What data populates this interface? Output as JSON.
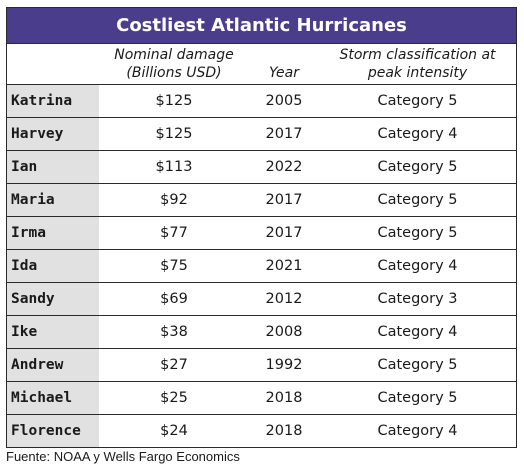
{
  "chart_data": {
    "type": "table",
    "title": "Costliest Atlantic Hurricanes",
    "columns": [
      {
        "key": "name",
        "label_lines": [
          "",
          ""
        ]
      },
      {
        "key": "damage",
        "label_lines": [
          "Nominal damage",
          "(Billions USD)"
        ]
      },
      {
        "key": "year",
        "label_lines": [
          "",
          "Year"
        ]
      },
      {
        "key": "classification",
        "label_lines": [
          "Storm classification at",
          "peak intensity"
        ]
      }
    ],
    "rows": [
      {
        "name": "Katrina",
        "damage": "$125",
        "year": "2005",
        "classification": "Category 5"
      },
      {
        "name": "Harvey",
        "damage": "$125",
        "year": "2017",
        "classification": "Category 4"
      },
      {
        "name": "Ian",
        "damage": "$113",
        "year": "2022",
        "classification": "Category 5"
      },
      {
        "name": "Maria",
        "damage": "$92",
        "year": "2017",
        "classification": "Category 5"
      },
      {
        "name": "Irma",
        "damage": "$77",
        "year": "2017",
        "classification": "Category 5"
      },
      {
        "name": "Ida",
        "damage": "$75",
        "year": "2021",
        "classification": "Category 4"
      },
      {
        "name": "Sandy",
        "damage": "$69",
        "year": "2012",
        "classification": "Category 3"
      },
      {
        "name": "Ike",
        "damage": "$38",
        "year": "2008",
        "classification": "Category 4"
      },
      {
        "name": "Andrew",
        "damage": "$27",
        "year": "1992",
        "classification": "Category 5"
      },
      {
        "name": "Michael",
        "damage": "$25",
        "year": "2018",
        "classification": "Category 5"
      },
      {
        "name": "Florence",
        "damage": "$24",
        "year": "2018",
        "classification": "Category 4"
      }
    ],
    "source": "Fuente: NOAA y Wells Fargo Economics"
  },
  "colors": {
    "title_bar": "#4a3d8c",
    "name_column_fill": "#e1e1e1",
    "border": "#2b2b2b"
  }
}
